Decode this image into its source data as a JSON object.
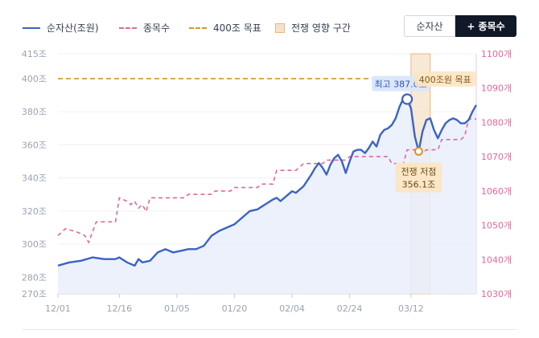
{
  "legend": {
    "net_assets": "순자산(조원)",
    "holdings": "종목수",
    "target": "400조 목표",
    "war_zone": "전쟁 영향 구간"
  },
  "toggle": {
    "net_assets_label": "순자산",
    "holdings_label": "+ 종목수",
    "active": "holdings"
  },
  "colors": {
    "net_assets": "#3b63c4",
    "net_assets_fill": "#e9effb",
    "holdings": "#e0679a",
    "target": "#d4962a",
    "war_zone_fill": "#f6e2c8",
    "war_zone_stroke": "#e9b980",
    "toggle_active_bg": "#111827"
  },
  "chart_data": {
    "type": "line",
    "x_ticks": [
      "12/01",
      "12/16",
      "01/05",
      "01/20",
      "02/04",
      "02/24",
      "03/12"
    ],
    "y_left": {
      "ylim": [
        270,
        415
      ],
      "ticks": [
        270,
        280,
        300,
        320,
        340,
        360,
        380,
        400,
        415
      ],
      "tick_suffix": "조"
    },
    "y_right": {
      "ylim": [
        1030,
        1100
      ],
      "ticks": [
        1030,
        1040,
        1050,
        1060,
        1070,
        1080,
        1090,
        1100
      ],
      "tick_suffix": "개"
    },
    "series": [
      {
        "name": "순자산(조원)",
        "axis": "left",
        "style": "solid-area",
        "points": [
          [
            0,
            287
          ],
          [
            3,
            289
          ],
          [
            6,
            290
          ],
          [
            9,
            292
          ],
          [
            12,
            291
          ],
          [
            15,
            291
          ],
          [
            16,
            292
          ],
          [
            18,
            289
          ],
          [
            20,
            287
          ],
          [
            21,
            291
          ],
          [
            22,
            289
          ],
          [
            24,
            290
          ],
          [
            26,
            295
          ],
          [
            28,
            297
          ],
          [
            30,
            295
          ],
          [
            32,
            296
          ],
          [
            34,
            297
          ],
          [
            36,
            297
          ],
          [
            38,
            299
          ],
          [
            40,
            305
          ],
          [
            42,
            308
          ],
          [
            44,
            310
          ],
          [
            46,
            312
          ],
          [
            48,
            316
          ],
          [
            50,
            320
          ],
          [
            52,
            321
          ],
          [
            54,
            324
          ],
          [
            56,
            327
          ],
          [
            57,
            328
          ],
          [
            58,
            326
          ],
          [
            60,
            330
          ],
          [
            61,
            332
          ],
          [
            62,
            331
          ],
          [
            64,
            335
          ],
          [
            66,
            342
          ],
          [
            67,
            346
          ],
          [
            68,
            349
          ],
          [
            69,
            346
          ],
          [
            70,
            342
          ],
          [
            71,
            348
          ],
          [
            72,
            352
          ],
          [
            73,
            354
          ],
          [
            74,
            350
          ],
          [
            75,
            343
          ],
          [
            76,
            350
          ],
          [
            77,
            356
          ],
          [
            78,
            357
          ],
          [
            79,
            357
          ],
          [
            80,
            355
          ],
          [
            81,
            358
          ],
          [
            82,
            362
          ],
          [
            83,
            359
          ],
          [
            84,
            366
          ],
          [
            85,
            369
          ],
          [
            86,
            370
          ],
          [
            87,
            372
          ],
          [
            88,
            376
          ],
          [
            89,
            383
          ],
          [
            90,
            388
          ],
          [
            91,
            387.6
          ],
          [
            92,
            382
          ],
          [
            93,
            365
          ],
          [
            94,
            356.1
          ],
          [
            95,
            368
          ],
          [
            96,
            375
          ],
          [
            97,
            376
          ],
          [
            98,
            369
          ],
          [
            99,
            364
          ],
          [
            100,
            369
          ],
          [
            101,
            373
          ],
          [
            102,
            375
          ],
          [
            103,
            376
          ],
          [
            104,
            375
          ],
          [
            105,
            373
          ],
          [
            106,
            373
          ],
          [
            107,
            375
          ],
          [
            108,
            380
          ],
          [
            109,
            384
          ]
        ]
      },
      {
        "name": "종목수",
        "axis": "right",
        "style": "dashed",
        "points": [
          [
            0,
            1047
          ],
          [
            2,
            1049
          ],
          [
            5,
            1048
          ],
          [
            7,
            1047
          ],
          [
            8,
            1045
          ],
          [
            9,
            1048
          ],
          [
            10,
            1051
          ],
          [
            15,
            1051
          ],
          [
            16,
            1058
          ],
          [
            18,
            1057
          ],
          [
            19,
            1056
          ],
          [
            20,
            1057
          ],
          [
            21,
            1055
          ],
          [
            22,
            1056
          ],
          [
            23,
            1054
          ],
          [
            24,
            1058
          ],
          [
            33,
            1058
          ],
          [
            34,
            1059
          ],
          [
            40,
            1059
          ],
          [
            41,
            1060
          ],
          [
            45,
            1060
          ],
          [
            46,
            1061
          ],
          [
            52,
            1061
          ],
          [
            53,
            1062
          ],
          [
            56,
            1062
          ],
          [
            57,
            1066
          ],
          [
            61,
            1066
          ],
          [
            62,
            1066
          ],
          [
            63,
            1067
          ],
          [
            64,
            1068
          ],
          [
            69,
            1068
          ],
          [
            70,
            1069
          ],
          [
            75,
            1069
          ],
          [
            76,
            1070
          ],
          [
            86,
            1070
          ],
          [
            87,
            1068
          ],
          [
            90,
            1068
          ],
          [
            91,
            1072
          ],
          [
            94,
            1072
          ],
          [
            95,
            1071
          ],
          [
            96,
            1072
          ],
          [
            99,
            1072
          ],
          [
            100,
            1075
          ],
          [
            105,
            1075
          ],
          [
            106,
            1076
          ],
          [
            107,
            1081
          ],
          [
            109,
            1081
          ]
        ]
      },
      {
        "name": "400조 목표",
        "axis": "left",
        "style": "dashed-horizontal",
        "value": 400
      }
    ],
    "x_range": [
      0,
      109
    ],
    "x_tick_index": [
      0,
      16,
      31,
      46,
      61,
      76,
      92
    ],
    "war_zone": {
      "x_from": 92,
      "x_to": 97
    },
    "annotations": [
      {
        "text": "최고 387.6조",
        "x": 91,
        "y": 387.6,
        "kind": "peak"
      },
      {
        "text": "400조원 목표",
        "x": 99,
        "y": 400,
        "kind": "target"
      },
      {
        "text": [
          "전쟁 저점",
          "356.1조"
        ],
        "x": 94,
        "y": 356.1,
        "kind": "trough"
      }
    ],
    "grid": "horizontal",
    "legend_position": "top"
  }
}
